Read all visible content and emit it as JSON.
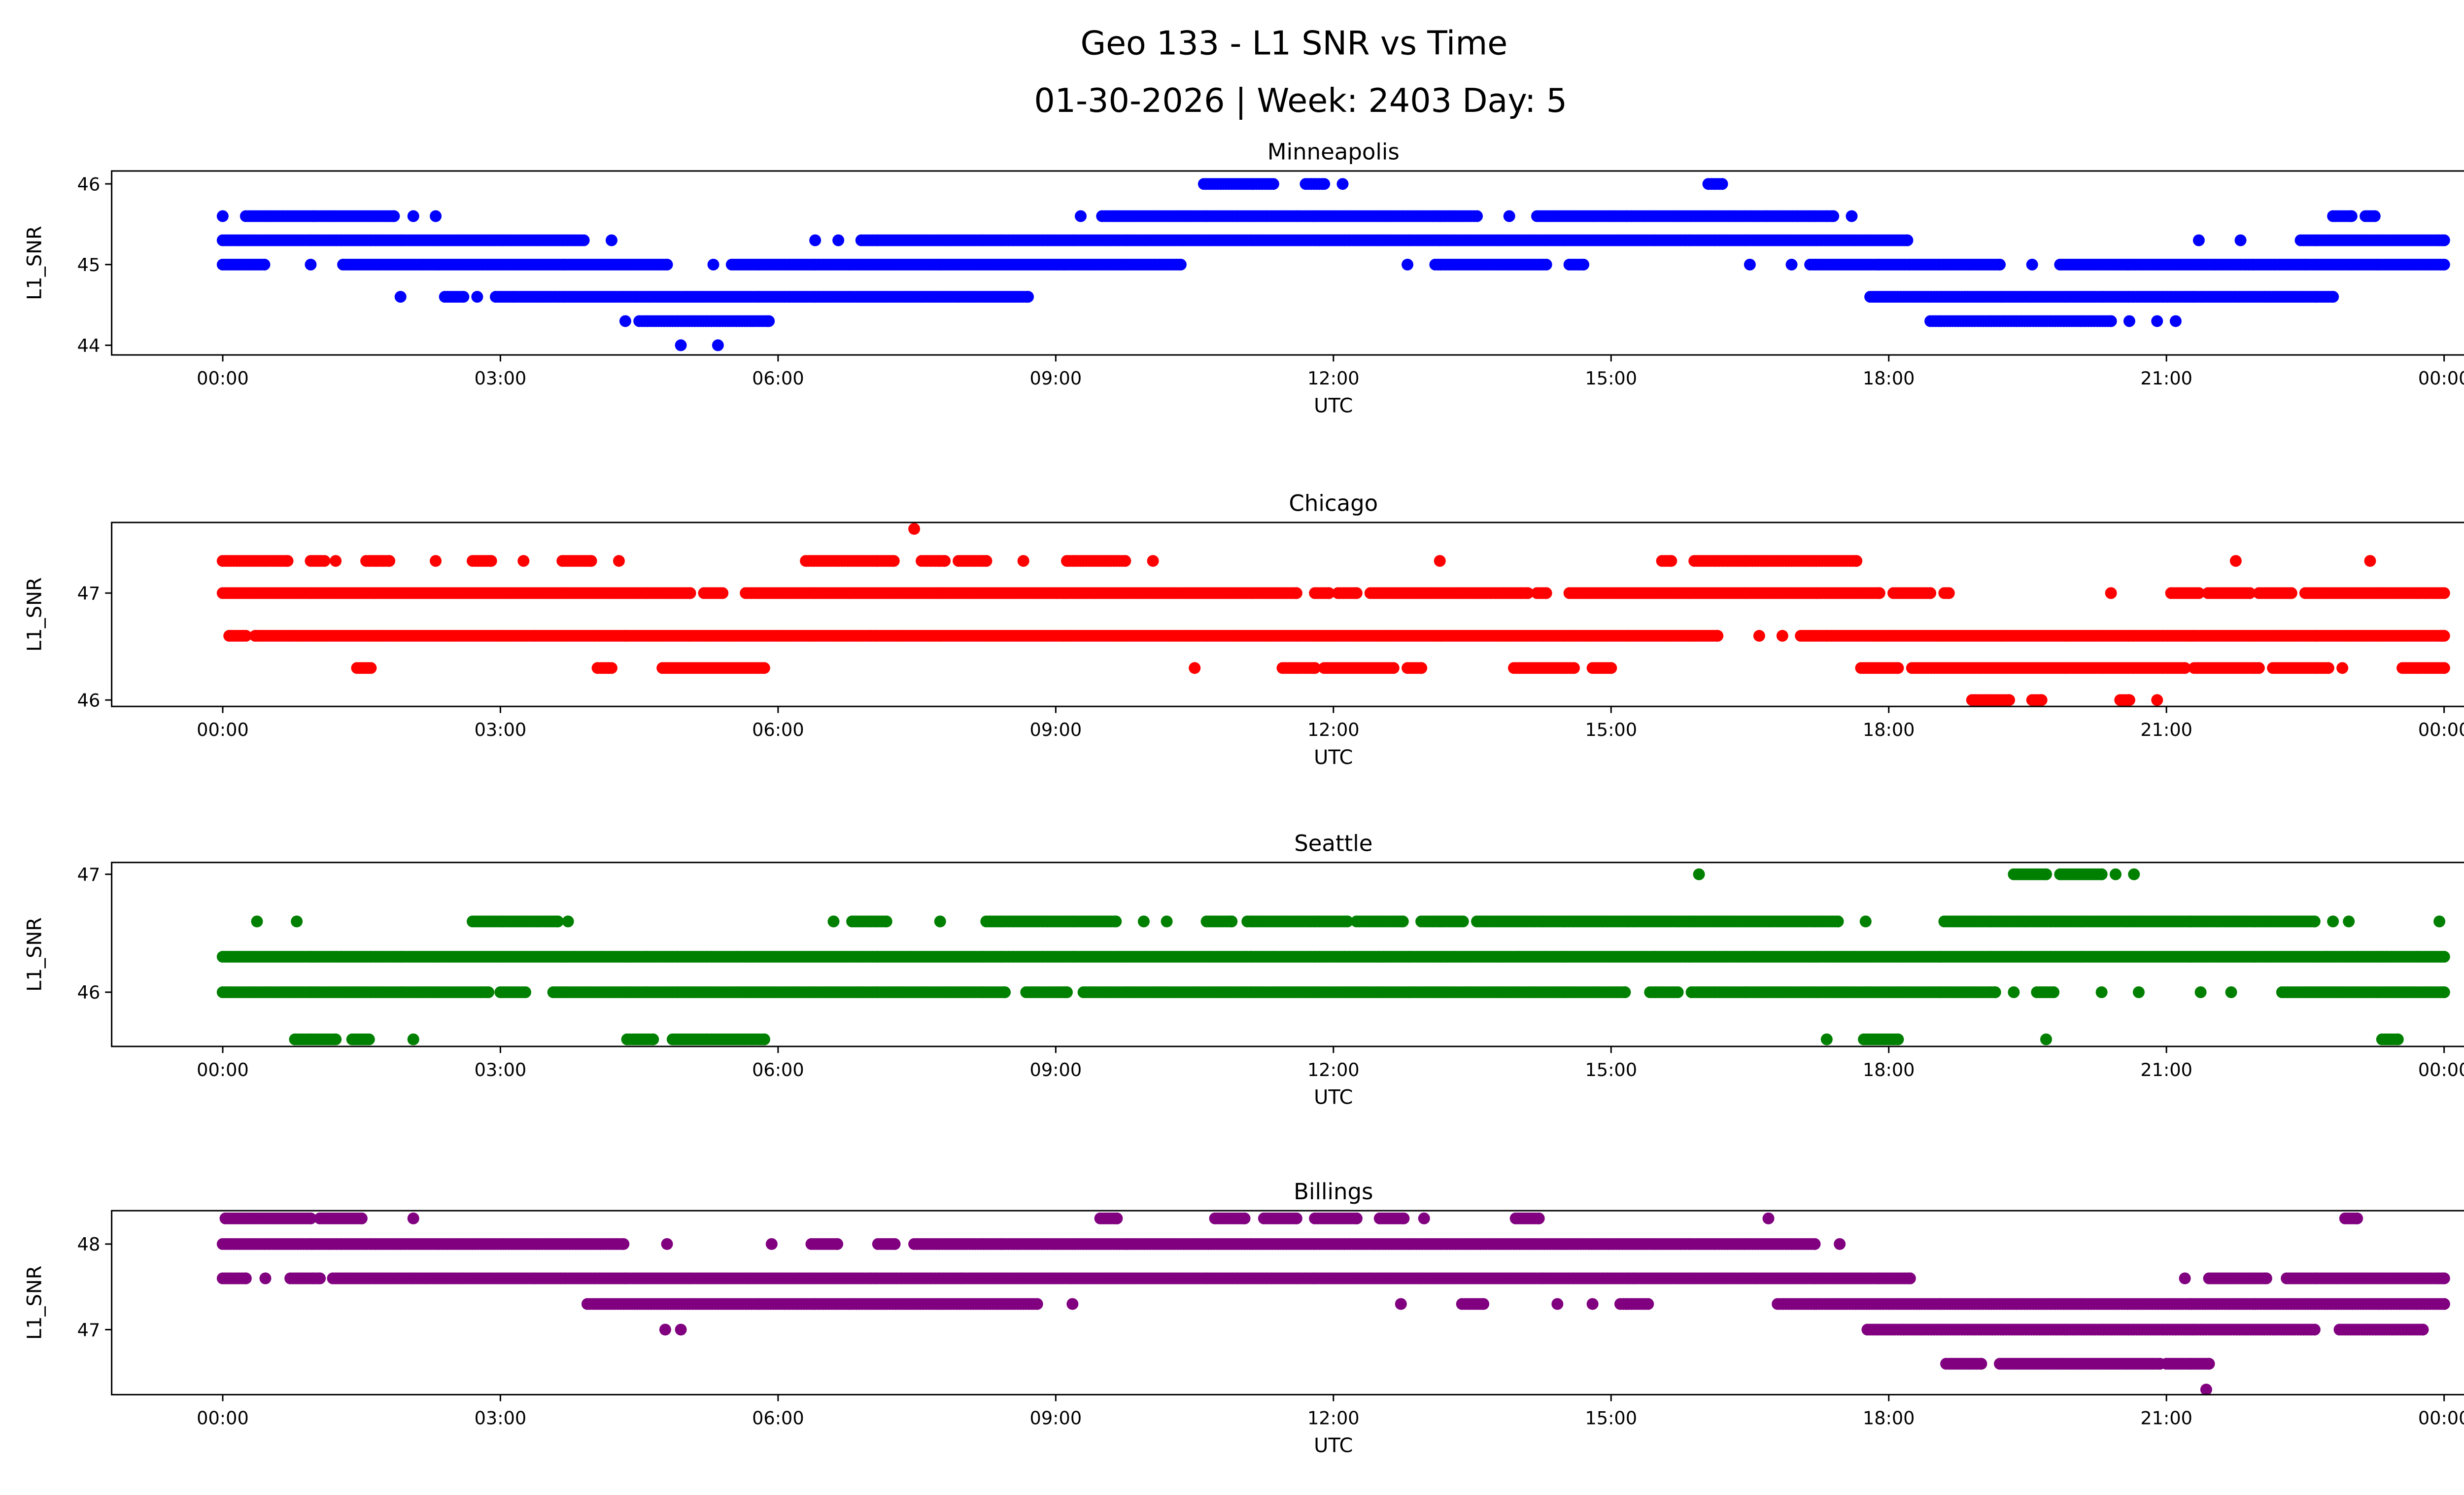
{
  "chart_data": {
    "type": "scatter",
    "title": "Geo 133 - L1 SNR vs Time",
    "subtitle": "01-30-2026 | Week: 2403 Day: 5",
    "xlabel": "UTC",
    "ylabel": "L1_SNR",
    "xlim_hours": [
      -1.2,
      25.2
    ],
    "x_ticks": [
      {
        "hour": 0,
        "label": "00:00"
      },
      {
        "hour": 3,
        "label": "03:00"
      },
      {
        "hour": 6,
        "label": "06:00"
      },
      {
        "hour": 9,
        "label": "09:00"
      },
      {
        "hour": 12,
        "label": "12:00"
      },
      {
        "hour": 15,
        "label": "15:00"
      },
      {
        "hour": 18,
        "label": "18:00"
      },
      {
        "hour": 21,
        "label": "21:00"
      },
      {
        "hour": 24,
        "label": "00:00"
      }
    ],
    "grid": false,
    "note": "runs are [SNR, start_hour, end_hour]; points drawn densely across each run",
    "subplots": [
      {
        "name": "Minneapolis",
        "color": "#0000ff",
        "ylim": [
          43.88,
          46.16
        ],
        "y_ticks": [
          44,
          45,
          46
        ],
        "runs": [
          [
            46.0,
            10.6,
            11.35
          ],
          [
            46.0,
            11.7,
            11.9
          ],
          [
            46.0,
            12.1,
            12.1
          ],
          [
            46.0,
            16.05,
            16.2
          ],
          [
            45.6,
            0.0,
            0.0
          ],
          [
            45.6,
            0.25,
            1.85
          ],
          [
            45.6,
            2.06,
            2.06
          ],
          [
            45.6,
            2.3,
            2.3
          ],
          [
            45.6,
            9.27,
            9.27
          ],
          [
            45.6,
            9.5,
            13.55
          ],
          [
            45.6,
            13.9,
            13.9
          ],
          [
            45.6,
            14.2,
            17.4
          ],
          [
            45.6,
            17.6,
            17.6
          ],
          [
            45.6,
            22.8,
            23.0
          ],
          [
            45.6,
            23.15,
            23.25
          ],
          [
            45.3,
            0.0,
            3.9
          ],
          [
            45.3,
            4.2,
            4.2
          ],
          [
            45.3,
            6.4,
            6.4
          ],
          [
            45.3,
            6.65,
            6.65
          ],
          [
            45.3,
            6.9,
            18.2
          ],
          [
            45.3,
            21.35,
            21.35
          ],
          [
            45.3,
            21.8,
            21.8
          ],
          [
            45.3,
            22.45,
            24.0
          ],
          [
            45.0,
            0.0,
            0.45
          ],
          [
            45.0,
            0.95,
            0.95
          ],
          [
            45.0,
            1.3,
            4.8
          ],
          [
            45.0,
            5.3,
            5.3
          ],
          [
            45.0,
            5.5,
            10.35
          ],
          [
            45.0,
            12.8,
            12.8
          ],
          [
            45.0,
            13.1,
            14.3
          ],
          [
            45.0,
            14.55,
            14.7
          ],
          [
            45.0,
            16.5,
            16.5
          ],
          [
            45.0,
            16.95,
            16.95
          ],
          [
            45.0,
            17.15,
            19.2
          ],
          [
            45.0,
            19.55,
            19.55
          ],
          [
            45.0,
            19.85,
            24.0
          ],
          [
            44.6,
            1.92,
            1.92
          ],
          [
            44.6,
            2.4,
            2.6
          ],
          [
            44.6,
            2.75,
            2.75
          ],
          [
            44.6,
            2.95,
            8.7
          ],
          [
            44.6,
            17.8,
            22.8
          ],
          [
            44.3,
            4.35,
            4.35
          ],
          [
            44.3,
            4.5,
            5.9
          ],
          [
            44.3,
            18.45,
            20.4
          ],
          [
            44.3,
            20.6,
            20.6
          ],
          [
            44.3,
            20.9,
            20.9
          ],
          [
            44.3,
            21.1,
            21.1
          ],
          [
            44.0,
            4.95,
            4.95
          ],
          [
            44.0,
            5.35,
            5.35
          ]
        ]
      },
      {
        "name": "Chicago",
        "color": "#ff0000",
        "ylim": [
          45.94,
          47.66
        ],
        "y_ticks": [
          46,
          47
        ],
        "runs": [
          [
            47.6,
            7.47,
            7.47
          ],
          [
            47.3,
            0.0,
            0.7
          ],
          [
            47.3,
            0.95,
            1.1
          ],
          [
            47.3,
            1.22,
            1.22
          ],
          [
            47.3,
            1.55,
            1.8
          ],
          [
            47.3,
            2.3,
            2.3
          ],
          [
            47.3,
            2.7,
            2.9
          ],
          [
            47.3,
            3.25,
            3.25
          ],
          [
            47.3,
            3.67,
            3.98
          ],
          [
            47.3,
            4.28,
            4.28
          ],
          [
            47.3,
            6.3,
            7.25
          ],
          [
            47.3,
            7.55,
            7.8
          ],
          [
            47.3,
            7.95,
            8.25
          ],
          [
            47.3,
            8.65,
            8.65
          ],
          [
            47.3,
            9.12,
            9.75
          ],
          [
            47.3,
            10.05,
            10.05
          ],
          [
            47.3,
            13.15,
            13.15
          ],
          [
            47.3,
            15.55,
            15.65
          ],
          [
            47.3,
            15.9,
            17.65
          ],
          [
            47.3,
            21.75,
            21.75
          ],
          [
            47.3,
            23.2,
            23.2
          ],
          [
            47.0,
            0.0,
            5.05
          ],
          [
            47.0,
            5.2,
            5.4
          ],
          [
            47.0,
            5.65,
            11.6
          ],
          [
            47.0,
            11.8,
            11.95
          ],
          [
            47.0,
            12.05,
            12.25
          ],
          [
            47.0,
            12.4,
            14.1
          ],
          [
            47.0,
            14.2,
            14.3
          ],
          [
            47.0,
            14.55,
            17.9
          ],
          [
            47.0,
            18.05,
            18.45
          ],
          [
            47.0,
            18.6,
            18.65
          ],
          [
            47.0,
            20.4,
            20.4
          ],
          [
            47.0,
            21.05,
            21.35
          ],
          [
            47.0,
            21.45,
            21.9
          ],
          [
            47.0,
            22.0,
            22.35
          ],
          [
            47.0,
            22.5,
            24.0
          ],
          [
            46.6,
            0.07,
            0.25
          ],
          [
            46.6,
            0.35,
            16.15
          ],
          [
            46.6,
            16.6,
            16.6
          ],
          [
            46.6,
            16.85,
            16.85
          ],
          [
            46.6,
            17.05,
            24.0
          ],
          [
            46.3,
            1.45,
            1.6
          ],
          [
            46.3,
            4.05,
            4.2
          ],
          [
            46.3,
            4.75,
            5.85
          ],
          [
            46.3,
            10.5,
            10.5
          ],
          [
            46.3,
            11.45,
            11.8
          ],
          [
            46.3,
            11.9,
            12.65
          ],
          [
            46.3,
            12.8,
            12.95
          ],
          [
            46.3,
            13.95,
            14.6
          ],
          [
            46.3,
            14.8,
            15.0
          ],
          [
            46.3,
            17.7,
            18.1
          ],
          [
            46.3,
            18.25,
            21.2
          ],
          [
            46.3,
            21.3,
            22.0
          ],
          [
            46.3,
            22.15,
            22.75
          ],
          [
            46.3,
            22.9,
            22.9
          ],
          [
            46.3,
            23.55,
            24.0
          ],
          [
            46.0,
            18.9,
            19.3
          ],
          [
            46.0,
            19.55,
            19.65
          ],
          [
            46.0,
            20.5,
            20.6
          ],
          [
            46.0,
            20.9,
            20.9
          ]
        ]
      },
      {
        "name": "Seattle",
        "color": "#008000",
        "ylim": [
          45.54,
          47.1
        ],
        "y_ticks": [
          46,
          47
        ],
        "runs": [
          [
            47.0,
            15.95,
            15.95
          ],
          [
            47.0,
            19.35,
            19.7
          ],
          [
            47.0,
            19.85,
            20.3
          ],
          [
            47.0,
            20.45,
            20.45
          ],
          [
            47.0,
            20.65,
            20.65
          ],
          [
            46.6,
            0.37,
            0.37
          ],
          [
            46.6,
            0.8,
            0.8
          ],
          [
            46.6,
            2.7,
            3.62
          ],
          [
            46.6,
            3.73,
            3.73
          ],
          [
            46.6,
            6.6,
            6.6
          ],
          [
            46.6,
            6.8,
            7.17
          ],
          [
            46.6,
            7.75,
            7.75
          ],
          [
            46.6,
            8.25,
            9.65
          ],
          [
            46.6,
            9.95,
            9.95
          ],
          [
            46.6,
            10.2,
            10.2
          ],
          [
            46.6,
            10.63,
            10.9
          ],
          [
            46.6,
            11.07,
            12.15
          ],
          [
            46.6,
            12.25,
            12.75
          ],
          [
            46.6,
            12.95,
            13.4
          ],
          [
            46.6,
            13.55,
            17.45
          ],
          [
            46.6,
            17.75,
            17.75
          ],
          [
            46.6,
            18.6,
            22.6
          ],
          [
            46.6,
            22.8,
            22.8
          ],
          [
            46.6,
            22.97,
            22.97
          ],
          [
            46.6,
            23.95,
            23.95
          ],
          [
            46.3,
            0.0,
            24.0
          ],
          [
            46.0,
            0.0,
            2.87
          ],
          [
            46.0,
            3.0,
            3.27
          ],
          [
            46.0,
            3.57,
            8.45
          ],
          [
            46.0,
            8.68,
            9.12
          ],
          [
            46.0,
            9.3,
            15.15
          ],
          [
            46.0,
            15.42,
            15.72
          ],
          [
            46.0,
            15.87,
            19.15
          ],
          [
            46.0,
            19.35,
            19.35
          ],
          [
            46.0,
            19.6,
            19.78
          ],
          [
            46.0,
            20.3,
            20.3
          ],
          [
            46.0,
            20.7,
            20.7
          ],
          [
            46.0,
            21.37,
            21.37
          ],
          [
            46.0,
            21.7,
            21.7
          ],
          [
            46.0,
            22.25,
            24.0
          ],
          [
            45.6,
            0.78,
            1.22
          ],
          [
            45.6,
            1.4,
            1.58
          ],
          [
            45.6,
            2.06,
            2.06
          ],
          [
            45.6,
            4.37,
            4.65
          ],
          [
            45.6,
            4.86,
            5.85
          ],
          [
            45.6,
            17.33,
            17.33
          ],
          [
            45.6,
            17.73,
            18.1
          ],
          [
            45.6,
            19.7,
            19.7
          ],
          [
            45.6,
            23.33,
            23.5
          ]
        ]
      },
      {
        "name": "Billings",
        "color": "#800080",
        "ylim": [
          46.24,
          48.39
        ],
        "y_ticks": [
          47,
          48
        ],
        "runs": [
          [
            48.3,
            0.03,
            0.95
          ],
          [
            48.3,
            1.05,
            1.5
          ],
          [
            48.3,
            2.06,
            2.06
          ],
          [
            48.3,
            9.48,
            9.66
          ],
          [
            48.3,
            10.72,
            11.04
          ],
          [
            48.3,
            11.25,
            11.6
          ],
          [
            48.3,
            11.8,
            12.25
          ],
          [
            48.3,
            12.5,
            12.76
          ],
          [
            48.3,
            12.98,
            12.98
          ],
          [
            48.3,
            13.97,
            14.22
          ],
          [
            48.3,
            16.7,
            16.7
          ],
          [
            48.3,
            22.93,
            23.06
          ],
          [
            48.0,
            0.0,
            4.33
          ],
          [
            48.0,
            4.8,
            4.8
          ],
          [
            48.0,
            5.93,
            5.93
          ],
          [
            48.0,
            6.36,
            6.64
          ],
          [
            48.0,
            7.08,
            7.26
          ],
          [
            48.0,
            7.47,
            17.2
          ],
          [
            48.0,
            17.47,
            17.47
          ],
          [
            47.6,
            0.0,
            0.25
          ],
          [
            47.6,
            0.46,
            0.46
          ],
          [
            47.6,
            0.73,
            1.05
          ],
          [
            47.6,
            1.19,
            18.23
          ],
          [
            47.6,
            21.2,
            21.2
          ],
          [
            47.6,
            21.46,
            22.08
          ],
          [
            47.6,
            22.3,
            24.0
          ],
          [
            47.3,
            3.94,
            8.8
          ],
          [
            47.3,
            9.18,
            9.18
          ],
          [
            47.3,
            12.73,
            12.73
          ],
          [
            47.3,
            13.39,
            13.62
          ],
          [
            47.3,
            14.42,
            14.42
          ],
          [
            47.3,
            14.8,
            14.8
          ],
          [
            47.3,
            15.1,
            15.4
          ],
          [
            47.3,
            16.8,
            24.0
          ],
          [
            47.0,
            4.78,
            4.78
          ],
          [
            47.0,
            4.95,
            4.95
          ],
          [
            47.0,
            17.77,
            22.6
          ],
          [
            47.0,
            22.87,
            23.77
          ],
          [
            46.6,
            18.62,
            19.0
          ],
          [
            46.6,
            19.2,
            20.93
          ],
          [
            46.6,
            21.0,
            21.46
          ],
          [
            46.3,
            21.43,
            21.43
          ]
        ]
      }
    ]
  }
}
